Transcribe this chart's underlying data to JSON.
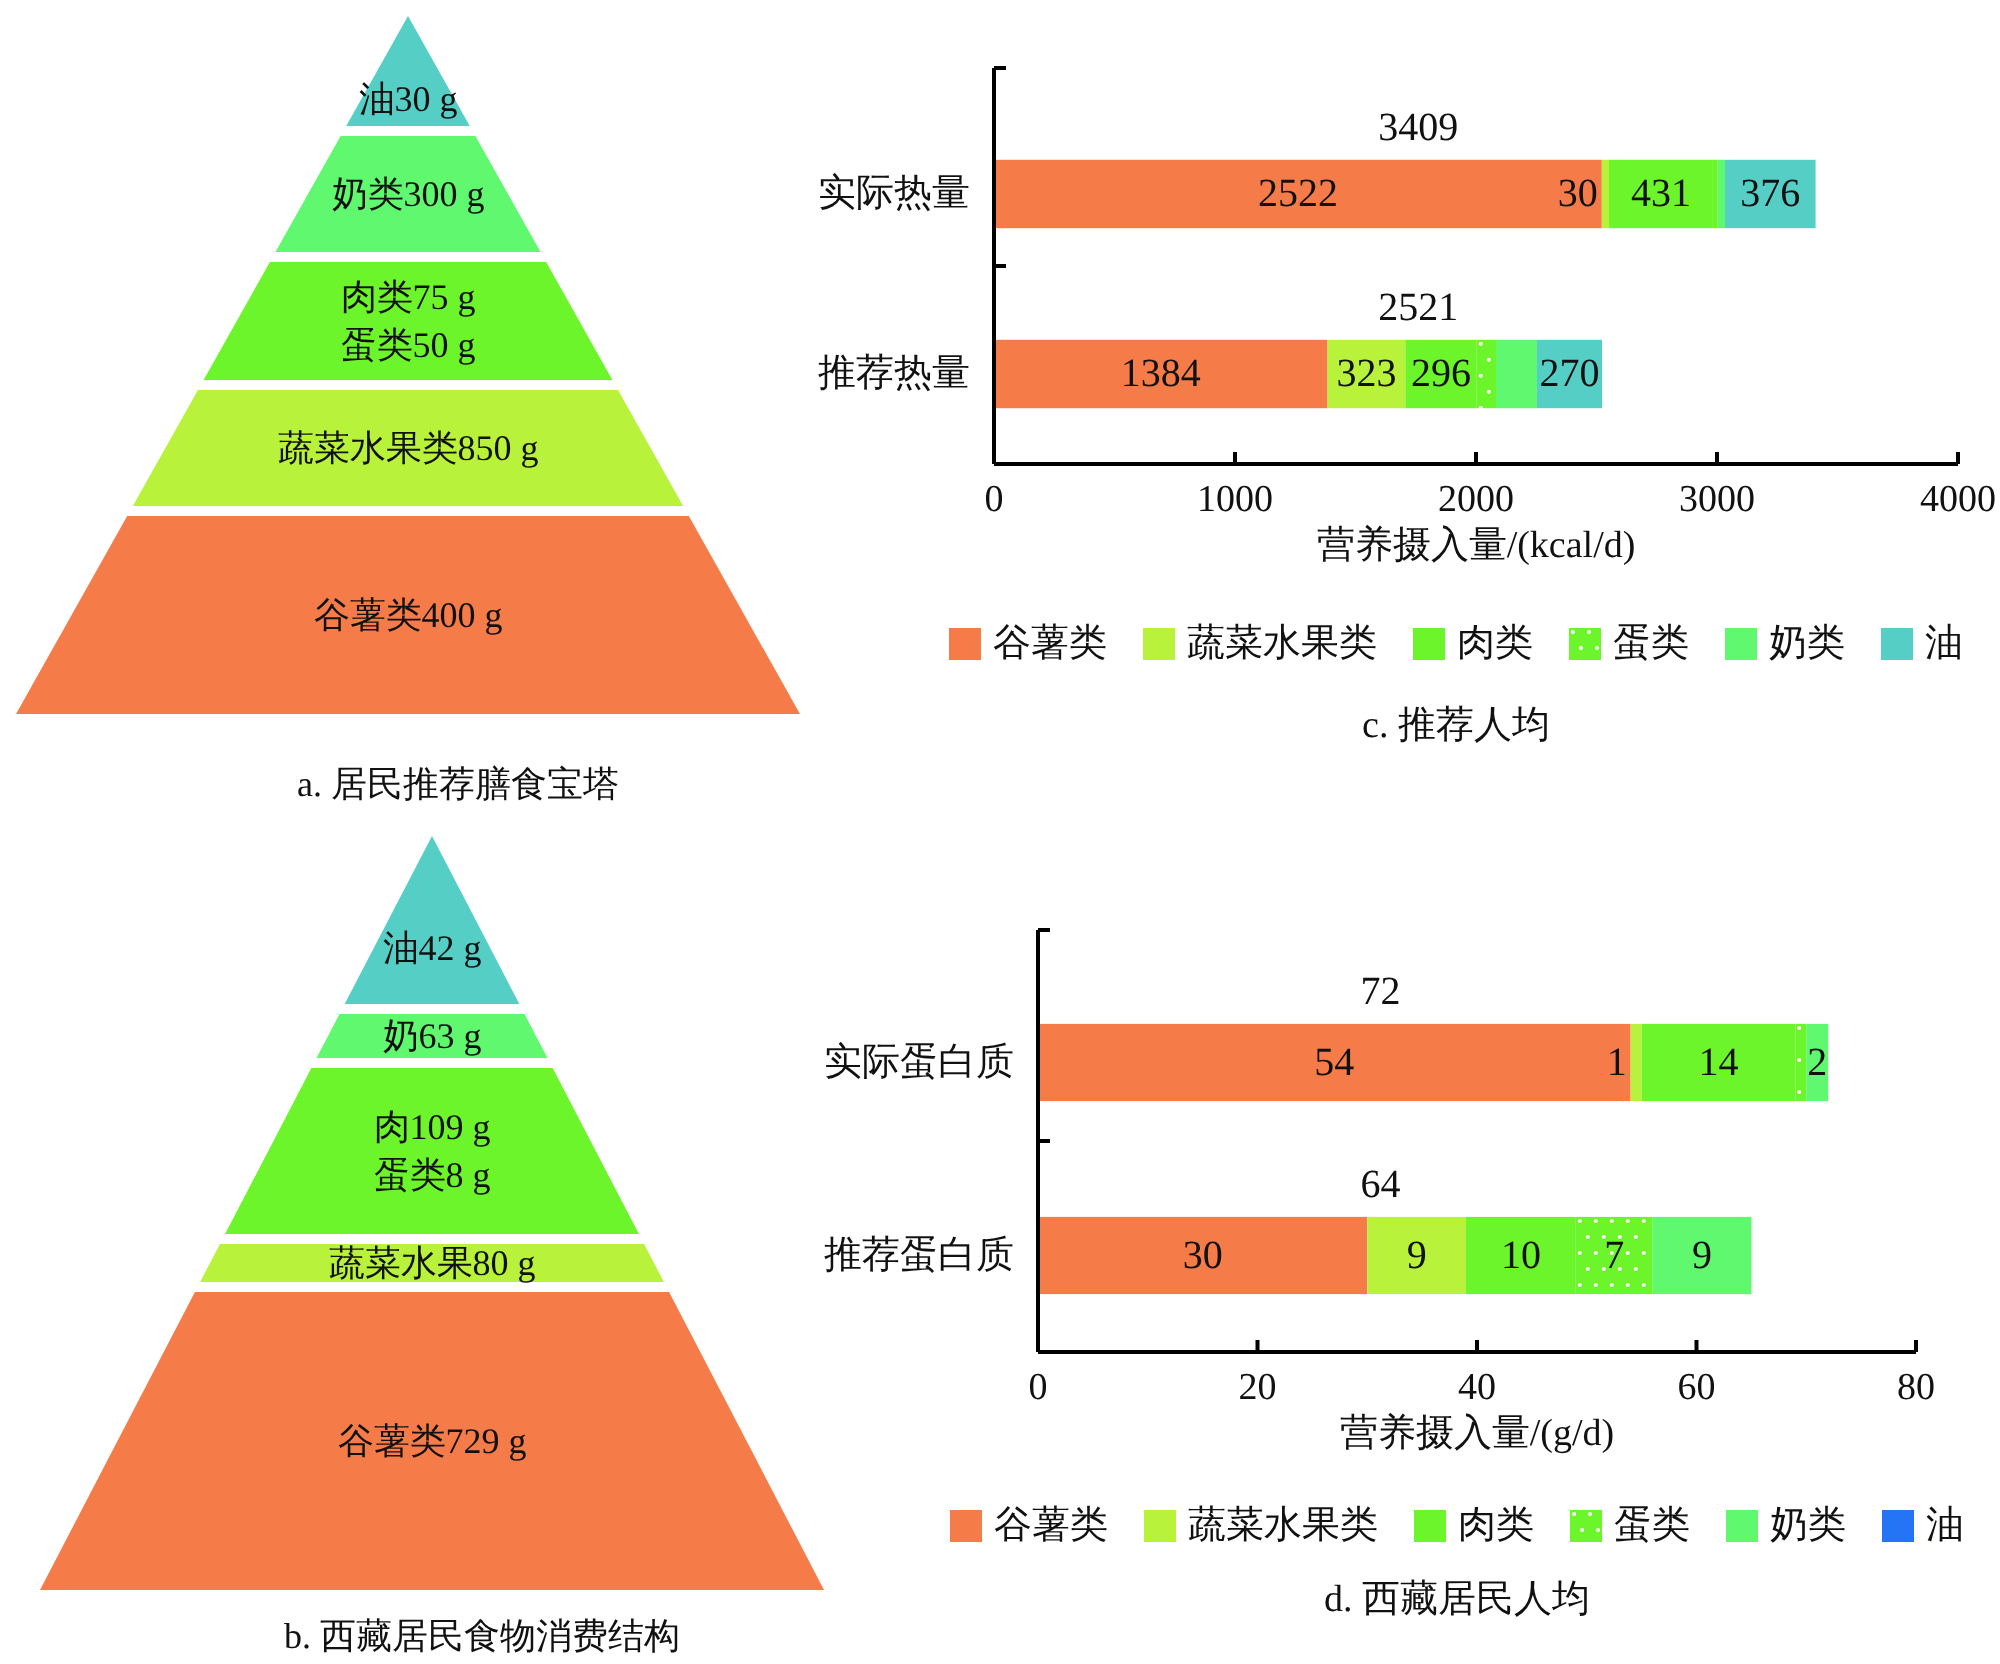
{
  "chart_data": [
    {
      "type": "other",
      "title": "a. 居民推荐膳食宝塔",
      "categories": [
        "油30 g",
        "奶类300 g",
        "肉类75 g\n蛋类50 g",
        "蔬菜水果类850 g",
        "谷薯类400 g"
      ],
      "colors": [
        "#55cfc6",
        "#5ff86e",
        "#6cf52a",
        "#b8f23a",
        "#f57b48"
      ]
    },
    {
      "type": "bar",
      "orientation": "horizontal",
      "stacked": true,
      "title": "c. 推荐人均",
      "xlabel": "营养摄入量/(kcal/d)",
      "categories": [
        "实际热量",
        "推荐热量"
      ],
      "xlim": [
        0,
        4000
      ],
      "xticks": [
        0,
        1000,
        2000,
        3000,
        4000
      ],
      "legend": "bottom",
      "totals": [
        "3409",
        "2521"
      ],
      "series": [
        {
          "name": "谷薯类",
          "color": "#f57b48",
          "values": [
            2522,
            1384
          ],
          "value_labels": [
            "2522",
            "1384"
          ]
        },
        {
          "name": "蔬菜水果类",
          "color": "#b8f23a",
          "values": [
            30,
            323
          ],
          "value_labels": [
            "30",
            "323"
          ]
        },
        {
          "name": "肉类",
          "color": "#6cf52a",
          "values": [
            431,
            296
          ],
          "value_labels": [
            "431",
            "296"
          ]
        },
        {
          "name": "蛋类",
          "color": "#6cf52a",
          "values": [
            20,
            80
          ],
          "value_labels": [
            null,
            null
          ]
        },
        {
          "name": "奶类",
          "color": "#5ff86e",
          "values": [
            30,
            170
          ],
          "value_labels": [
            null,
            null
          ]
        },
        {
          "name": "油",
          "color": "#55cfc6",
          "values": [
            376,
            270
          ],
          "value_labels": [
            "376",
            "270"
          ]
        }
      ]
    },
    {
      "type": "other",
      "title": "b. 西藏居民食物消费结构",
      "categories": [
        "油42 g",
        "奶63 g",
        "肉109 g\n蛋类8 g",
        "蔬菜水果80 g",
        "谷薯类729 g"
      ],
      "colors": [
        "#55cfc6",
        "#5ff86e",
        "#6cf52a",
        "#b8f23a",
        "#f57b48"
      ]
    },
    {
      "type": "bar",
      "orientation": "horizontal",
      "stacked": true,
      "title": "d. 西藏居民人均",
      "xlabel": "营养摄入量/(g/d)",
      "categories": [
        "实际蛋白质",
        "推荐蛋白质"
      ],
      "xlim": [
        0,
        80
      ],
      "xticks": [
        0,
        20,
        40,
        60,
        80
      ],
      "legend": "bottom",
      "totals": [
        "72",
        "64"
      ],
      "series": [
        {
          "name": "谷薯类",
          "color": "#f57b48",
          "values": [
            54,
            30
          ],
          "value_labels": [
            "54",
            "30"
          ]
        },
        {
          "name": "蔬菜水果类",
          "color": "#b8f23a",
          "values": [
            1,
            9
          ],
          "value_labels": [
            "1",
            "9"
          ]
        },
        {
          "name": "肉类",
          "color": "#6cf52a",
          "values": [
            14,
            10
          ],
          "value_labels": [
            "14",
            "10"
          ]
        },
        {
          "name": "蛋类",
          "color": "#6cf52a",
          "values": [
            1,
            7
          ],
          "value_labels": [
            null,
            "7"
          ]
        },
        {
          "name": "奶类",
          "color": "#5ff86e",
          "values": [
            2,
            9
          ],
          "value_labels": [
            "2",
            "9"
          ]
        },
        {
          "name": "油",
          "color": "#2474f5",
          "values": [
            null,
            null
          ],
          "value_labels": [
            null,
            null
          ]
        }
      ]
    }
  ]
}
